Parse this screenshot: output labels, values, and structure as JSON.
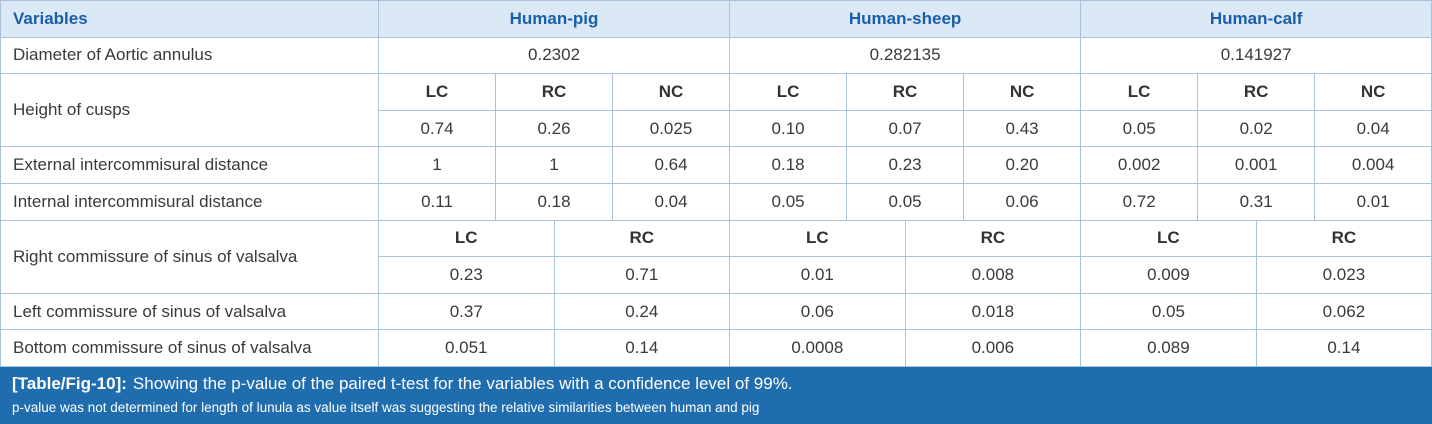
{
  "table": {
    "header": [
      "Variables",
      "Human-pig",
      "Human-sheep",
      "Human-calf"
    ],
    "rows": [
      {
        "label": "Diameter of Aortic annulus",
        "values": [
          "0.2302",
          "0.282135",
          "0.141927"
        ]
      },
      {
        "label": "Height of cusps",
        "subheaders": [
          "LC",
          "RC",
          "NC",
          "LC",
          "RC",
          "NC",
          "LC",
          "RC",
          "NC"
        ],
        "values": [
          "0.74",
          "0.26",
          "0.025",
          "0.10",
          "0.07",
          "0.43",
          "0.05",
          "0.02",
          "0.04"
        ]
      },
      {
        "label": "External intercommisural distance",
        "values": [
          "1",
          "1",
          "0.64",
          "0.18",
          "0.23",
          "0.20",
          "0.002",
          "0.001",
          "0.004"
        ]
      },
      {
        "label": "Internal intercommisural distance",
        "values": [
          "0.11",
          "0.18",
          "0.04",
          "0.05",
          "0.05",
          "0.06",
          "0.72",
          "0.31",
          "0.01"
        ]
      },
      {
        "label": "Right commissure of sinus of valsalva",
        "subheaders": [
          "LC",
          "RC",
          "LC",
          "RC",
          "LC",
          "RC"
        ],
        "values": [
          "0.23",
          "0.71",
          "0.01",
          "0.008",
          "0.009",
          "0.023"
        ]
      },
      {
        "label": "Left commissure of sinus of valsalva",
        "values": [
          "0.37",
          "0.24",
          "0.06",
          "0.018",
          "0.05",
          "0.062"
        ]
      },
      {
        "label": "Bottom commissure of sinus of valsalva",
        "values": [
          "0.051",
          "0.14",
          "0.0008",
          "0.006",
          "0.089",
          "0.14"
        ]
      }
    ]
  },
  "caption": {
    "tag": "[Table/Fig-10]:",
    "text": "Showing the p-value of the paired t-test for the variables with a confidence level of 99%.",
    "note": "p-value was not determined for length of lunula as value itself was suggesting the relative similarities between human and pig"
  }
}
